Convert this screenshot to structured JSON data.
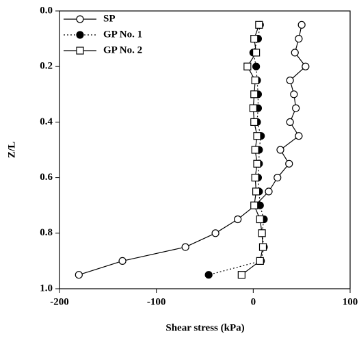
{
  "chart_data": {
    "type": "line",
    "x_label": "Shear stress (kPa)",
    "y_label": "Z/L",
    "xlim": [
      -200,
      100
    ],
    "xticks": [
      -200,
      -100,
      0,
      100
    ],
    "ylim": [
      0,
      1
    ],
    "y_inverted": true,
    "yticks": [
      {
        "value": 0,
        "label": "0.0"
      },
      0.2,
      0.4,
      0.6,
      0.8,
      {
        "value": 1,
        "label": "1.0"
      }
    ],
    "legend": "upper left",
    "y": [
      0.05,
      0.1,
      0.15,
      0.2,
      0.25,
      0.3,
      0.35,
      0.4,
      0.45,
      0.5,
      0.55,
      0.6,
      0.65,
      0.7,
      0.75,
      0.8,
      0.85,
      0.9,
      0.95
    ],
    "series": [
      {
        "name": "SP",
        "color": "#000000",
        "marker": "circle-open",
        "line_style": "solid",
        "x": [
          50,
          47,
          43,
          54,
          38,
          42,
          44,
          38,
          47,
          28,
          37,
          25,
          16,
          2,
          -16,
          -39,
          -70,
          -135,
          -180
        ]
      },
      {
        "name": "GP No. 1",
        "color": "#000000",
        "marker": "circle-filled",
        "line_style": "dotted",
        "x": [
          7,
          5,
          0,
          3,
          4,
          5,
          5,
          4,
          8,
          6,
          6,
          5,
          6,
          7,
          11,
          9,
          11,
          8,
          -46
        ]
      },
      {
        "name": "GP No. 2",
        "color": "#000000",
        "marker": "square-open",
        "line_style": "solid",
        "x": [
          6,
          1,
          3,
          -6,
          2,
          1,
          0,
          1,
          4,
          2,
          4,
          2,
          3,
          1,
          7,
          9,
          10,
          7,
          -12
        ]
      }
    ]
  }
}
